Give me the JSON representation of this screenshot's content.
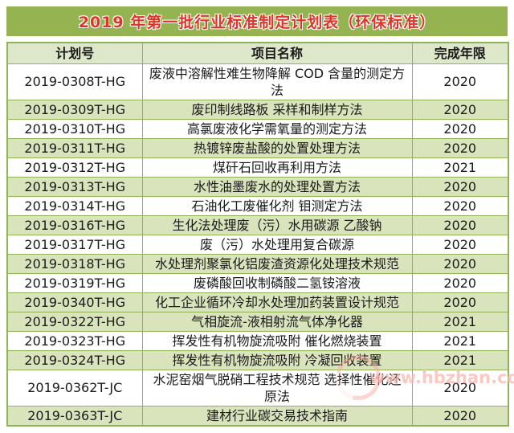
{
  "title": "2019 年第一批行业标准制定计划表（环保标准）",
  "table": {
    "columns": [
      "计划号",
      "项目名称",
      "完成年限"
    ],
    "rows": [
      {
        "plan_no": "2019-0308T-HG",
        "project": "废液中溶解性难生物降解 COD 含量的测定方法",
        "year": "2020",
        "shaded": false
      },
      {
        "plan_no": "2019-0309T-HG",
        "project": "废印制线路板 采样和制样方法",
        "year": "2020",
        "shaded": true
      },
      {
        "plan_no": "2019-0310T-HG",
        "project": "高氯废液化学需氧量的测定方法",
        "year": "2020",
        "shaded": false
      },
      {
        "plan_no": "2019-0311T-HG",
        "project": "热镀锌废盐酸的处置处理方法",
        "year": "2020",
        "shaded": true
      },
      {
        "plan_no": "2019-0312T-HG",
        "project": "煤矸石回收再利用方法",
        "year": "2021",
        "shaded": false
      },
      {
        "plan_no": "2019-0313T-HG",
        "project": "水性油墨废水的处理处置方法",
        "year": "2020",
        "shaded": true
      },
      {
        "plan_no": "2019-0314T-HG",
        "project": "石油化工废催化剂 钼测定方法",
        "year": "2020",
        "shaded": false
      },
      {
        "plan_no": "2019-0316T-HG",
        "project": "生化法处理废（污）水用碳源 乙酸钠",
        "year": "2020",
        "shaded": true
      },
      {
        "plan_no": "2019-0317T-HG",
        "project": "废（污）水处理用复合碳源",
        "year": "2020",
        "shaded": false
      },
      {
        "plan_no": "2019-0318T-HG",
        "project": "水处理剂聚氯化铝废渣资源化处理技术规范",
        "year": "2020",
        "shaded": true
      },
      {
        "plan_no": "2019-0319T-HG",
        "project": "废磷酸回收制磷酸二氢铵溶液",
        "year": "2020",
        "shaded": false
      },
      {
        "plan_no": "2019-0340T-HG",
        "project": "化工企业循环冷却水处理加药装置设计规范",
        "year": "2020",
        "shaded": true
      },
      {
        "plan_no": "2019-0322T-HG",
        "project": "气相旋流-液相射流气体净化器",
        "year": "2021",
        "shaded": true
      },
      {
        "plan_no": "2019-0323T-HG",
        "project": "挥发性有机物旋流吸附 催化燃烧装置",
        "year": "2021",
        "shaded": false
      },
      {
        "plan_no": "2019-0324T-HG",
        "project": "挥发性有机物旋流吸附 冷凝回收装置",
        "year": "2021",
        "shaded": true
      },
      {
        "plan_no": "2019-0362T-JC",
        "project": "水泥窑烟气脱硝工程技术规范 选择性催化还原法",
        "year": "2020",
        "shaded": false
      },
      {
        "plan_no": "2019-0363T-JC",
        "project": "建材行业碳交易技术指南",
        "year": "2020",
        "shaded": true
      }
    ]
  },
  "watermark": {
    "text": "www.hbzhan.com"
  },
  "colors": {
    "title_band": "#95b351",
    "title_text": "#df3526",
    "header_bg": "#dde7c9",
    "row_shaded": "#d9e4bd",
    "row_plain": "#ffffff",
    "border": "#8fb356",
    "watermark": "#f8a79c"
  }
}
